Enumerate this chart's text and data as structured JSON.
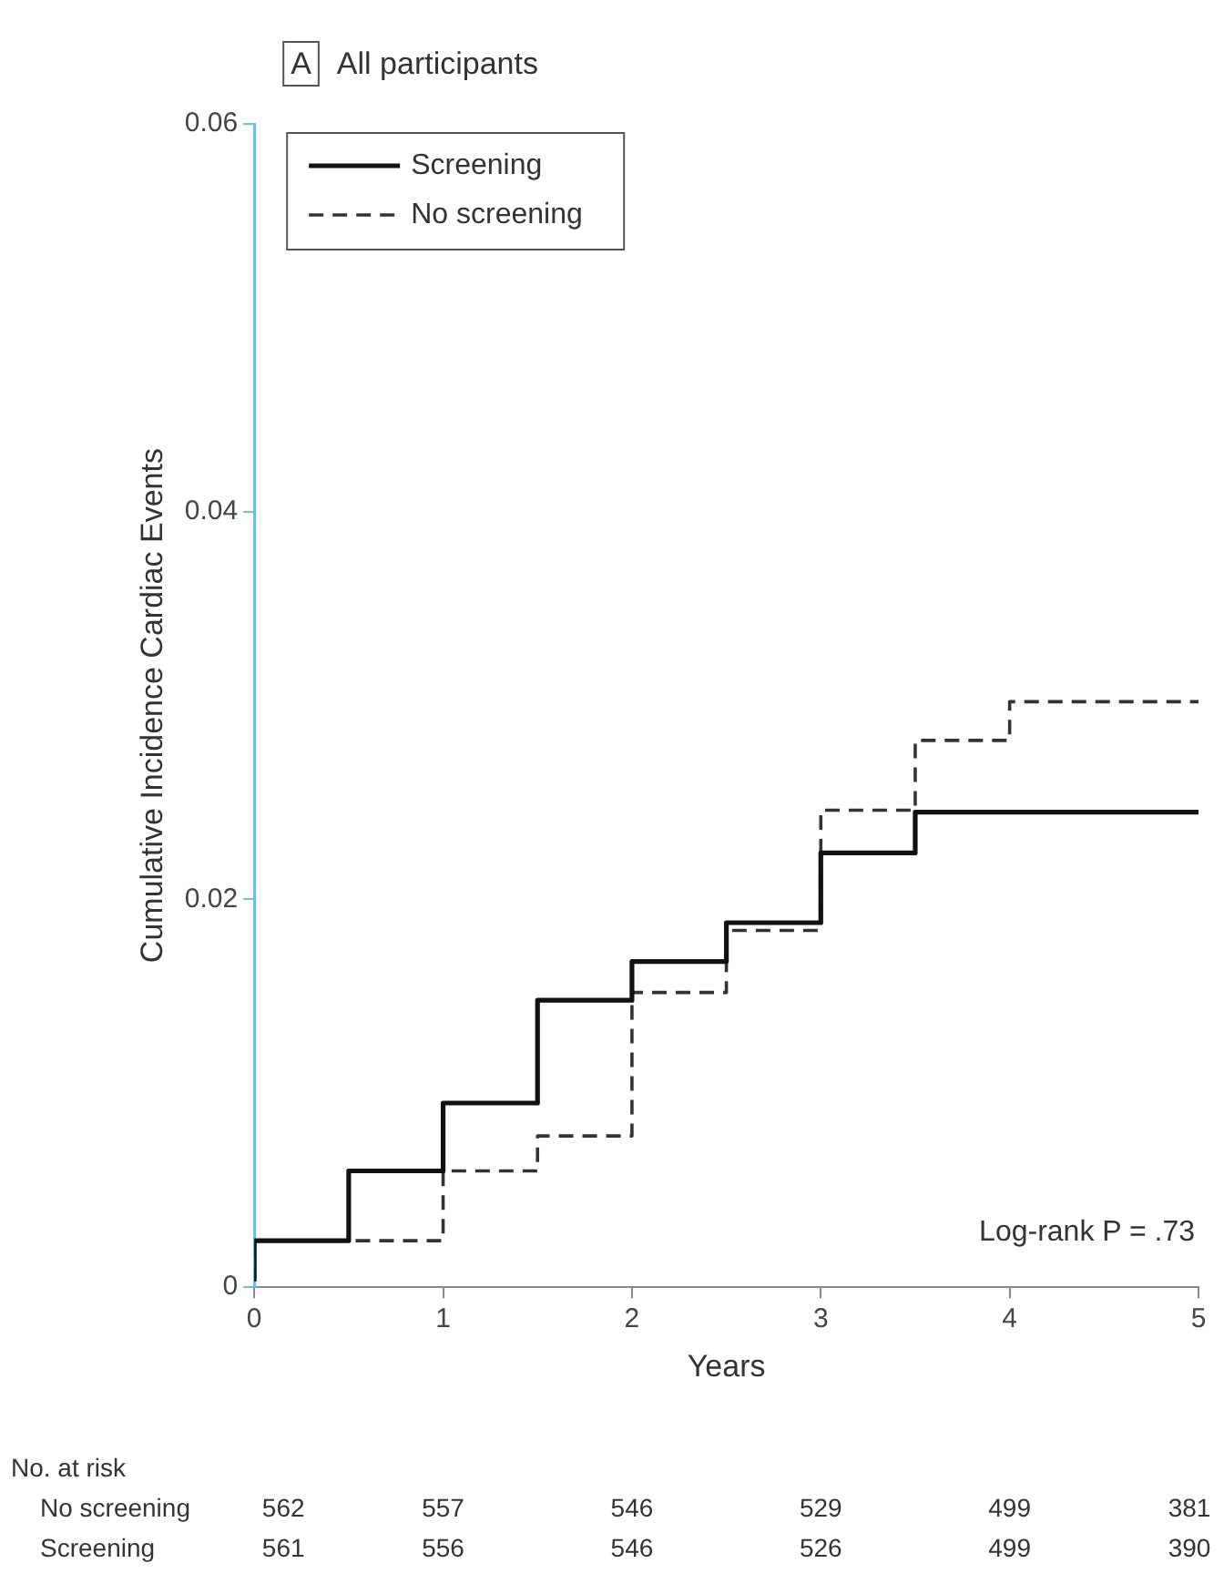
{
  "chart_data": {
    "type": "step",
    "title": "All participants",
    "xlabel": "Years",
    "ylabel": "Cumulative Incidence Cardiac Events",
    "series": [
      {
        "name": "Screening",
        "color": "#111111",
        "line_style": "solid",
        "x": [
          0,
          0.5,
          1,
          1.5,
          2,
          2.5,
          3,
          3.5,
          4,
          5
        ],
        "values": [
          0.0003,
          0.0024,
          0.006,
          0.0095,
          0.0148,
          0.0168,
          0.0188,
          0.0224,
          0.0245,
          0.0245
        ]
      },
      {
        "name": "No screening",
        "color": "#333333",
        "line_style": "dashed",
        "x": [
          0,
          0.5,
          1,
          1.5,
          2,
          2.5,
          3,
          3.5,
          4,
          4.5,
          5
        ],
        "values": [
          0.0003,
          0.0024,
          0.0024,
          0.006,
          0.0078,
          0.0152,
          0.0184,
          0.0246,
          0.0282,
          0.0302,
          0.0302
        ]
      }
    ],
    "xlim": [
      0,
      5
    ],
    "xticks": [
      0,
      1,
      2,
      3,
      4,
      5
    ],
    "ylim": [
      0,
      0.06
    ],
    "yticks": [
      0,
      0.02,
      0.04,
      0.06
    ],
    "grid": false,
    "legend": "top left",
    "annotations": [
      "A",
      "Log-rank P = .73",
      "No. at risk",
      "No screening",
      "562",
      "557",
      "546",
      "529",
      "499",
      "381",
      "Screening",
      "561",
      "556",
      "546",
      "526",
      "499",
      "390"
    ]
  }
}
